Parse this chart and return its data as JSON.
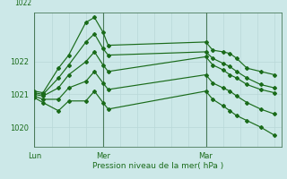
{
  "background_color": "#cce8e8",
  "grid_color_minor": "#b8d8d8",
  "grid_color_major": "#a0c8c8",
  "line_color": "#1a6b1a",
  "vline_color": "#4a7a5a",
  "xlabel": "Pression niveau de la mer( hPa )",
  "x_tick_labels": [
    "Lun",
    "Mer",
    "Mar"
  ],
  "x_tick_positions": [
    0.0,
    2.0,
    5.0
  ],
  "ylim": [
    1019.4,
    1023.5
  ],
  "yticks": [
    1020,
    1021,
    1022
  ],
  "xlim": [
    0.0,
    7.2
  ],
  "series": [
    [
      1021.1,
      1021.05,
      1021.8,
      1022.2,
      1023.2,
      1023.35,
      1022.9,
      1022.5,
      1022.6,
      1022.35,
      1022.3,
      1022.25,
      1022.1,
      1021.8,
      1021.7,
      1021.6
    ],
    [
      1021.05,
      1021.0,
      1021.5,
      1021.9,
      1022.6,
      1022.85,
      1022.4,
      1022.2,
      1022.3,
      1022.1,
      1021.95,
      1021.85,
      1021.7,
      1021.5,
      1021.3,
      1021.2
    ],
    [
      1021.0,
      1020.95,
      1021.2,
      1021.6,
      1022.0,
      1022.3,
      1021.9,
      1021.7,
      1022.15,
      1021.9,
      1021.75,
      1021.6,
      1021.5,
      1021.3,
      1021.15,
      1021.05
    ],
    [
      1020.95,
      1020.85,
      1020.85,
      1021.2,
      1021.4,
      1021.7,
      1021.35,
      1021.15,
      1021.6,
      1021.35,
      1021.2,
      1021.1,
      1020.95,
      1020.75,
      1020.55,
      1020.4
    ],
    [
      1020.9,
      1020.75,
      1020.5,
      1020.8,
      1020.8,
      1021.1,
      1020.75,
      1020.55,
      1021.1,
      1020.85,
      1020.65,
      1020.5,
      1020.35,
      1020.2,
      1020.0,
      1019.75
    ]
  ],
  "x_series": [
    0.0,
    0.25,
    0.7,
    1.0,
    1.5,
    1.75,
    2.0,
    2.15,
    5.0,
    5.2,
    5.5,
    5.7,
    5.9,
    6.2,
    6.6,
    7.0
  ],
  "vline_positions": [
    0.0,
    2.0,
    5.0
  ],
  "minor_vlines": [
    0.5,
    1.0,
    1.5,
    2.5,
    3.0,
    3.5,
    4.0,
    4.5,
    5.5,
    6.0,
    6.5,
    7.0
  ],
  "figsize": [
    3.2,
    2.0
  ],
  "dpi": 100
}
